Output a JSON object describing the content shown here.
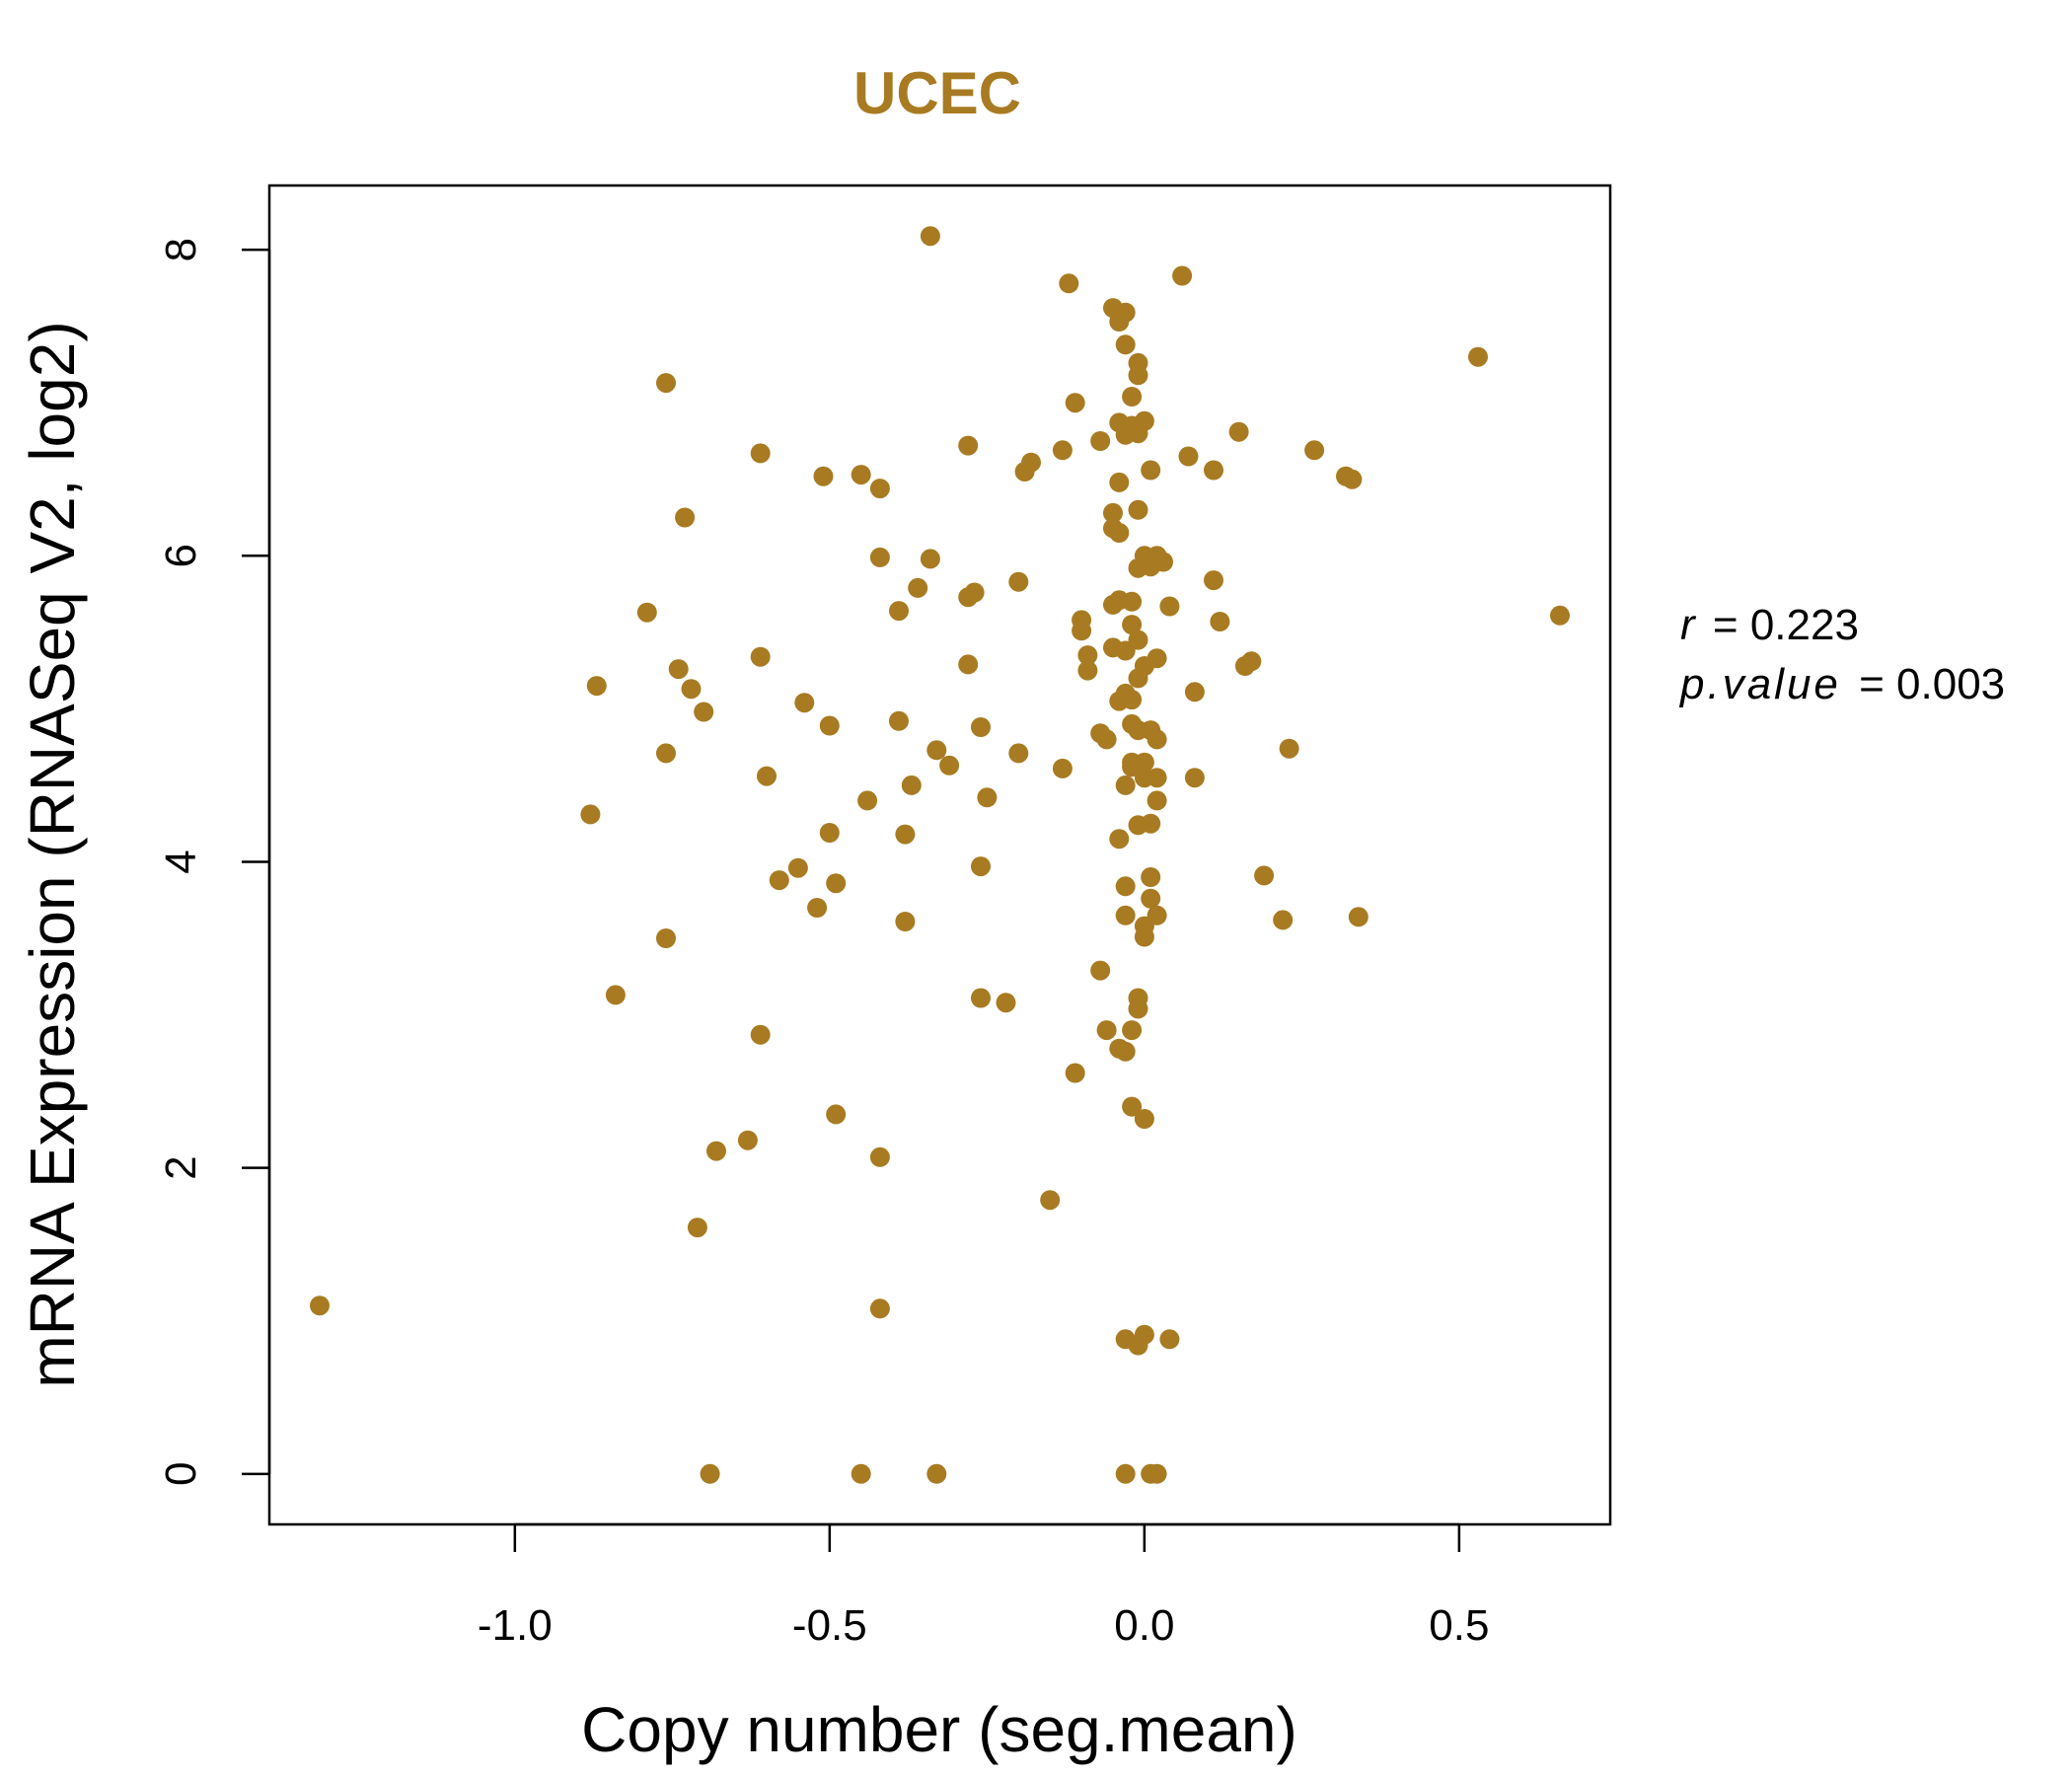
{
  "chart_data": {
    "type": "scatter",
    "title": "UCEC",
    "xlabel": "Copy number (seg.mean)",
    "ylabel": "mRNA Expression (RNASeq V2, log2)",
    "xlim": [
      -1.39,
      0.74
    ],
    "ylim": [
      -0.33,
      8.42
    ],
    "xticks": [
      -1.0,
      -0.5,
      0.0,
      0.5
    ],
    "xtick_labels": [
      "-1.0",
      "-0.5",
      "0.0",
      "0.5"
    ],
    "yticks": [
      0,
      2,
      4,
      6,
      8
    ],
    "ytick_labels": [
      "0",
      "2",
      "4",
      "6",
      "8"
    ],
    "grid": false,
    "legend": "none",
    "point_color": "#A87B22",
    "stats": {
      "r_label": "r",
      "r_value": "0.223",
      "p_label": "p.value",
      "p_value": "0.003"
    },
    "points": [
      [
        -1.31,
        1.1
      ],
      [
        -0.88,
        4.31
      ],
      [
        -0.87,
        5.15
      ],
      [
        -0.84,
        3.13
      ],
      [
        -0.79,
        5.63
      ],
      [
        -0.76,
        7.13
      ],
      [
        -0.76,
        4.71
      ],
      [
        -0.76,
        3.5
      ],
      [
        -0.74,
        5.26
      ],
      [
        -0.73,
        6.25
      ],
      [
        -0.72,
        5.13
      ],
      [
        -0.7,
        4.98
      ],
      [
        -0.71,
        1.61
      ],
      [
        -0.68,
        2.11
      ],
      [
        -0.69,
        0.0
      ],
      [
        -0.63,
        2.18
      ],
      [
        -0.61,
        6.67
      ],
      [
        -0.61,
        5.34
      ],
      [
        -0.6,
        4.56
      ],
      [
        -0.61,
        2.87
      ],
      [
        -0.58,
        3.88
      ],
      [
        -0.55,
        3.96
      ],
      [
        -0.54,
        5.04
      ],
      [
        -0.52,
        3.7
      ],
      [
        -0.51,
        6.52
      ],
      [
        -0.5,
        4.89
      ],
      [
        -0.5,
        4.19
      ],
      [
        -0.49,
        3.86
      ],
      [
        -0.49,
        2.35
      ],
      [
        -0.45,
        6.53
      ],
      [
        -0.45,
        0.0
      ],
      [
        -0.44,
        4.4
      ],
      [
        -0.42,
        6.44
      ],
      [
        -0.42,
        5.99
      ],
      [
        -0.42,
        2.07
      ],
      [
        -0.42,
        1.08
      ],
      [
        -0.39,
        5.64
      ],
      [
        -0.39,
        4.92
      ],
      [
        -0.38,
        4.18
      ],
      [
        -0.38,
        3.61
      ],
      [
        -0.37,
        4.5
      ],
      [
        -0.36,
        5.79
      ],
      [
        -0.34,
        8.09
      ],
      [
        -0.34,
        5.98
      ],
      [
        -0.33,
        4.73
      ],
      [
        -0.33,
        0.0
      ],
      [
        -0.31,
        4.63
      ],
      [
        -0.28,
        6.72
      ],
      [
        -0.28,
        5.73
      ],
      [
        -0.28,
        5.29
      ],
      [
        -0.27,
        5.76
      ],
      [
        -0.26,
        4.88
      ],
      [
        -0.26,
        3.97
      ],
      [
        -0.26,
        3.11
      ],
      [
        -0.25,
        4.42
      ],
      [
        -0.22,
        3.08
      ],
      [
        -0.2,
        5.83
      ],
      [
        -0.2,
        4.71
      ],
      [
        -0.19,
        6.55
      ],
      [
        -0.18,
        6.61
      ],
      [
        -0.15,
        1.79
      ],
      [
        -0.13,
        6.69
      ],
      [
        -0.13,
        4.61
      ],
      [
        -0.12,
        7.78
      ],
      [
        -0.11,
        7.0
      ],
      [
        -0.11,
        2.62
      ],
      [
        -0.1,
        5.58
      ],
      [
        -0.1,
        5.51
      ],
      [
        -0.09,
        5.35
      ],
      [
        -0.09,
        5.25
      ],
      [
        -0.07,
        6.75
      ],
      [
        -0.07,
        4.84
      ],
      [
        -0.07,
        3.29
      ],
      [
        -0.06,
        4.8
      ],
      [
        -0.06,
        2.9
      ],
      [
        -0.05,
        7.62
      ],
      [
        -0.05,
        6.28
      ],
      [
        -0.05,
        6.18
      ],
      [
        -0.05,
        5.68
      ],
      [
        -0.05,
        5.4
      ],
      [
        -0.04,
        7.53
      ],
      [
        -0.04,
        6.87
      ],
      [
        -0.04,
        6.48
      ],
      [
        -0.04,
        6.15
      ],
      [
        -0.04,
        5.71
      ],
      [
        -0.04,
        5.05
      ],
      [
        -0.04,
        4.15
      ],
      [
        -0.04,
        2.78
      ],
      [
        -0.03,
        7.59
      ],
      [
        -0.03,
        7.38
      ],
      [
        -0.03,
        6.79
      ],
      [
        -0.03,
        5.38
      ],
      [
        -0.03,
        5.1
      ],
      [
        -0.03,
        4.5
      ],
      [
        -0.03,
        3.84
      ],
      [
        -0.03,
        3.65
      ],
      [
        -0.03,
        2.76
      ],
      [
        -0.03,
        0.88
      ],
      [
        -0.03,
        0.0
      ],
      [
        -0.02,
        7.04
      ],
      [
        -0.02,
        6.85
      ],
      [
        -0.02,
        5.7
      ],
      [
        -0.02,
        5.55
      ],
      [
        -0.02,
        5.06
      ],
      [
        -0.02,
        4.9
      ],
      [
        -0.02,
        4.65
      ],
      [
        -0.02,
        4.62
      ],
      [
        -0.02,
        2.9
      ],
      [
        -0.02,
        2.4
      ],
      [
        -0.01,
        7.26
      ],
      [
        -0.01,
        7.18
      ],
      [
        -0.01,
        6.8
      ],
      [
        -0.01,
        6.3
      ],
      [
        -0.01,
        5.92
      ],
      [
        -0.01,
        5.45
      ],
      [
        -0.01,
        5.2
      ],
      [
        -0.01,
        4.86
      ],
      [
        -0.01,
        4.24
      ],
      [
        -0.01,
        3.11
      ],
      [
        -0.01,
        3.04
      ],
      [
        -0.01,
        0.84
      ],
      [
        0.0,
        6.88
      ],
      [
        0.0,
        6.0
      ],
      [
        0.0,
        5.28
      ],
      [
        0.0,
        4.65
      ],
      [
        0.0,
        4.55
      ],
      [
        0.0,
        3.51
      ],
      [
        0.0,
        3.58
      ],
      [
        0.0,
        2.32
      ],
      [
        0.0,
        0.91
      ],
      [
        0.01,
        6.56
      ],
      [
        0.01,
        5.93
      ],
      [
        0.01,
        4.86
      ],
      [
        0.01,
        4.25
      ],
      [
        0.01,
        3.9
      ],
      [
        0.01,
        3.76
      ],
      [
        0.01,
        0.0
      ],
      [
        0.02,
        6.0
      ],
      [
        0.02,
        5.33
      ],
      [
        0.02,
        4.8
      ],
      [
        0.02,
        4.55
      ],
      [
        0.02,
        4.4
      ],
      [
        0.02,
        3.65
      ],
      [
        0.02,
        0.0
      ],
      [
        0.03,
        5.96
      ],
      [
        0.04,
        5.67
      ],
      [
        0.04,
        0.88
      ],
      [
        0.06,
        7.83
      ],
      [
        0.07,
        6.65
      ],
      [
        0.08,
        5.11
      ],
      [
        0.08,
        4.55
      ],
      [
        0.11,
        6.56
      ],
      [
        0.11,
        5.84
      ],
      [
        0.12,
        5.57
      ],
      [
        0.15,
        6.81
      ],
      [
        0.16,
        5.28
      ],
      [
        0.17,
        5.31
      ],
      [
        0.19,
        3.91
      ],
      [
        0.22,
        3.62
      ],
      [
        0.23,
        4.74
      ],
      [
        0.27,
        6.69
      ],
      [
        0.32,
        6.52
      ],
      [
        0.33,
        6.5
      ],
      [
        0.34,
        3.64
      ],
      [
        0.53,
        7.3
      ],
      [
        0.66,
        5.61
      ]
    ]
  }
}
